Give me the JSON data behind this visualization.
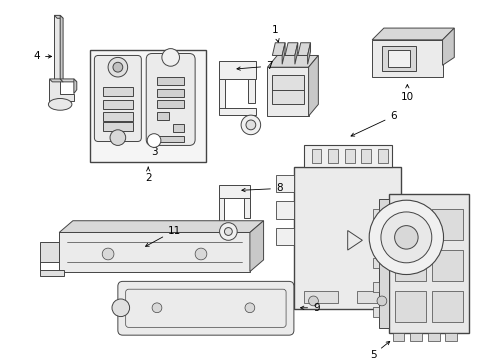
{
  "bg_color": "#ffffff",
  "line_color": "#444444",
  "lw": 0.7,
  "fig_width": 4.9,
  "fig_height": 3.6,
  "dpi": 100
}
